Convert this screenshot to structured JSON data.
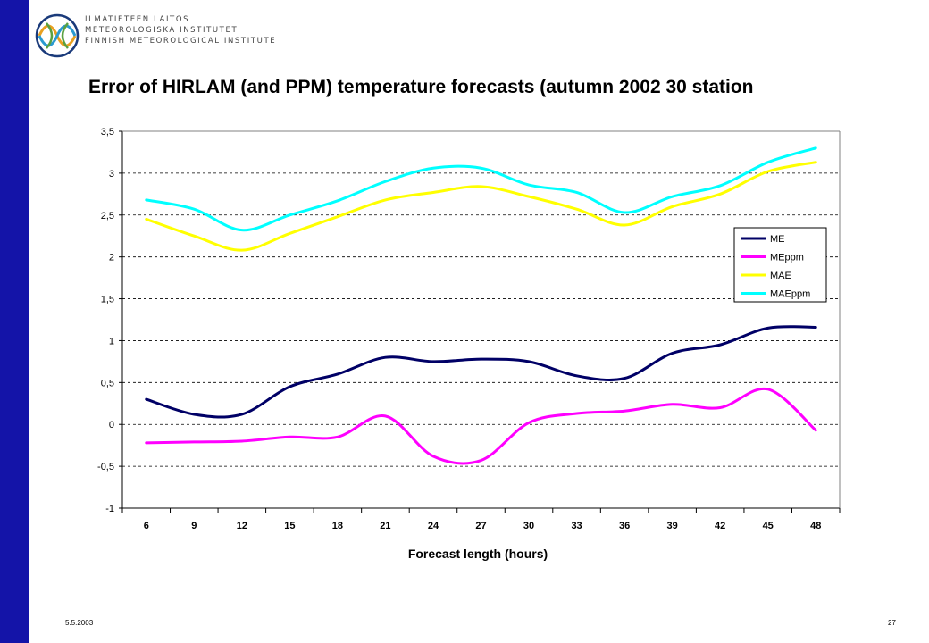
{
  "header": {
    "org_lines": [
      "ILMATIETEEN LAITOS",
      "METEOROLOGISKA INSTITUTET",
      "FINNISH METEOROLOGICAL INSTITUTE"
    ]
  },
  "slide": {
    "title": "Error of HIRLAM (and PPM) temperature forecasts (autumn 2002 30 station",
    "footer_date": "5.5.2003",
    "page_number": "27"
  },
  "chart_data": {
    "type": "line",
    "title": "",
    "xlabel": "Forecast length (hours)",
    "ylabel": "",
    "categories": [
      "6",
      "9",
      "12",
      "15",
      "18",
      "21",
      "24",
      "27",
      "30",
      "33",
      "36",
      "39",
      "42",
      "45",
      "48"
    ],
    "ylim": [
      -1,
      3.5
    ],
    "yticks": [
      "-1",
      "-0,5",
      "0",
      "0,5",
      "1",
      "1,5",
      "2",
      "2,5",
      "3",
      "3,5"
    ],
    "ytick_values": [
      -1,
      -0.5,
      0,
      0.5,
      1,
      1.5,
      2,
      2.5,
      3,
      3.5
    ],
    "grid": "horizontal dashed",
    "legend_position": "right",
    "series": [
      {
        "name": "ME",
        "color": "#000066",
        "values": [
          0.3,
          0.12,
          0.12,
          0.45,
          0.6,
          0.8,
          0.75,
          0.78,
          0.75,
          0.58,
          0.55,
          0.85,
          0.95,
          1.15,
          1.16
        ]
      },
      {
        "name": "MEppm",
        "color": "#ff00ff",
        "values": [
          -0.22,
          -0.21,
          -0.2,
          -0.15,
          -0.15,
          0.1,
          -0.38,
          -0.43,
          0.02,
          0.13,
          0.16,
          0.24,
          0.2,
          0.42,
          -0.07
        ]
      },
      {
        "name": "MAE",
        "color": "#ffff00",
        "values": [
          2.45,
          2.25,
          2.08,
          2.28,
          2.48,
          2.68,
          2.77,
          2.84,
          2.72,
          2.57,
          2.38,
          2.6,
          2.75,
          3.02,
          3.13
        ]
      },
      {
        "name": "MAEppm",
        "color": "#00ffff",
        "values": [
          2.68,
          2.57,
          2.32,
          2.5,
          2.67,
          2.9,
          3.06,
          3.06,
          2.86,
          2.77,
          2.53,
          2.72,
          2.85,
          3.13,
          3.3
        ]
      }
    ]
  }
}
